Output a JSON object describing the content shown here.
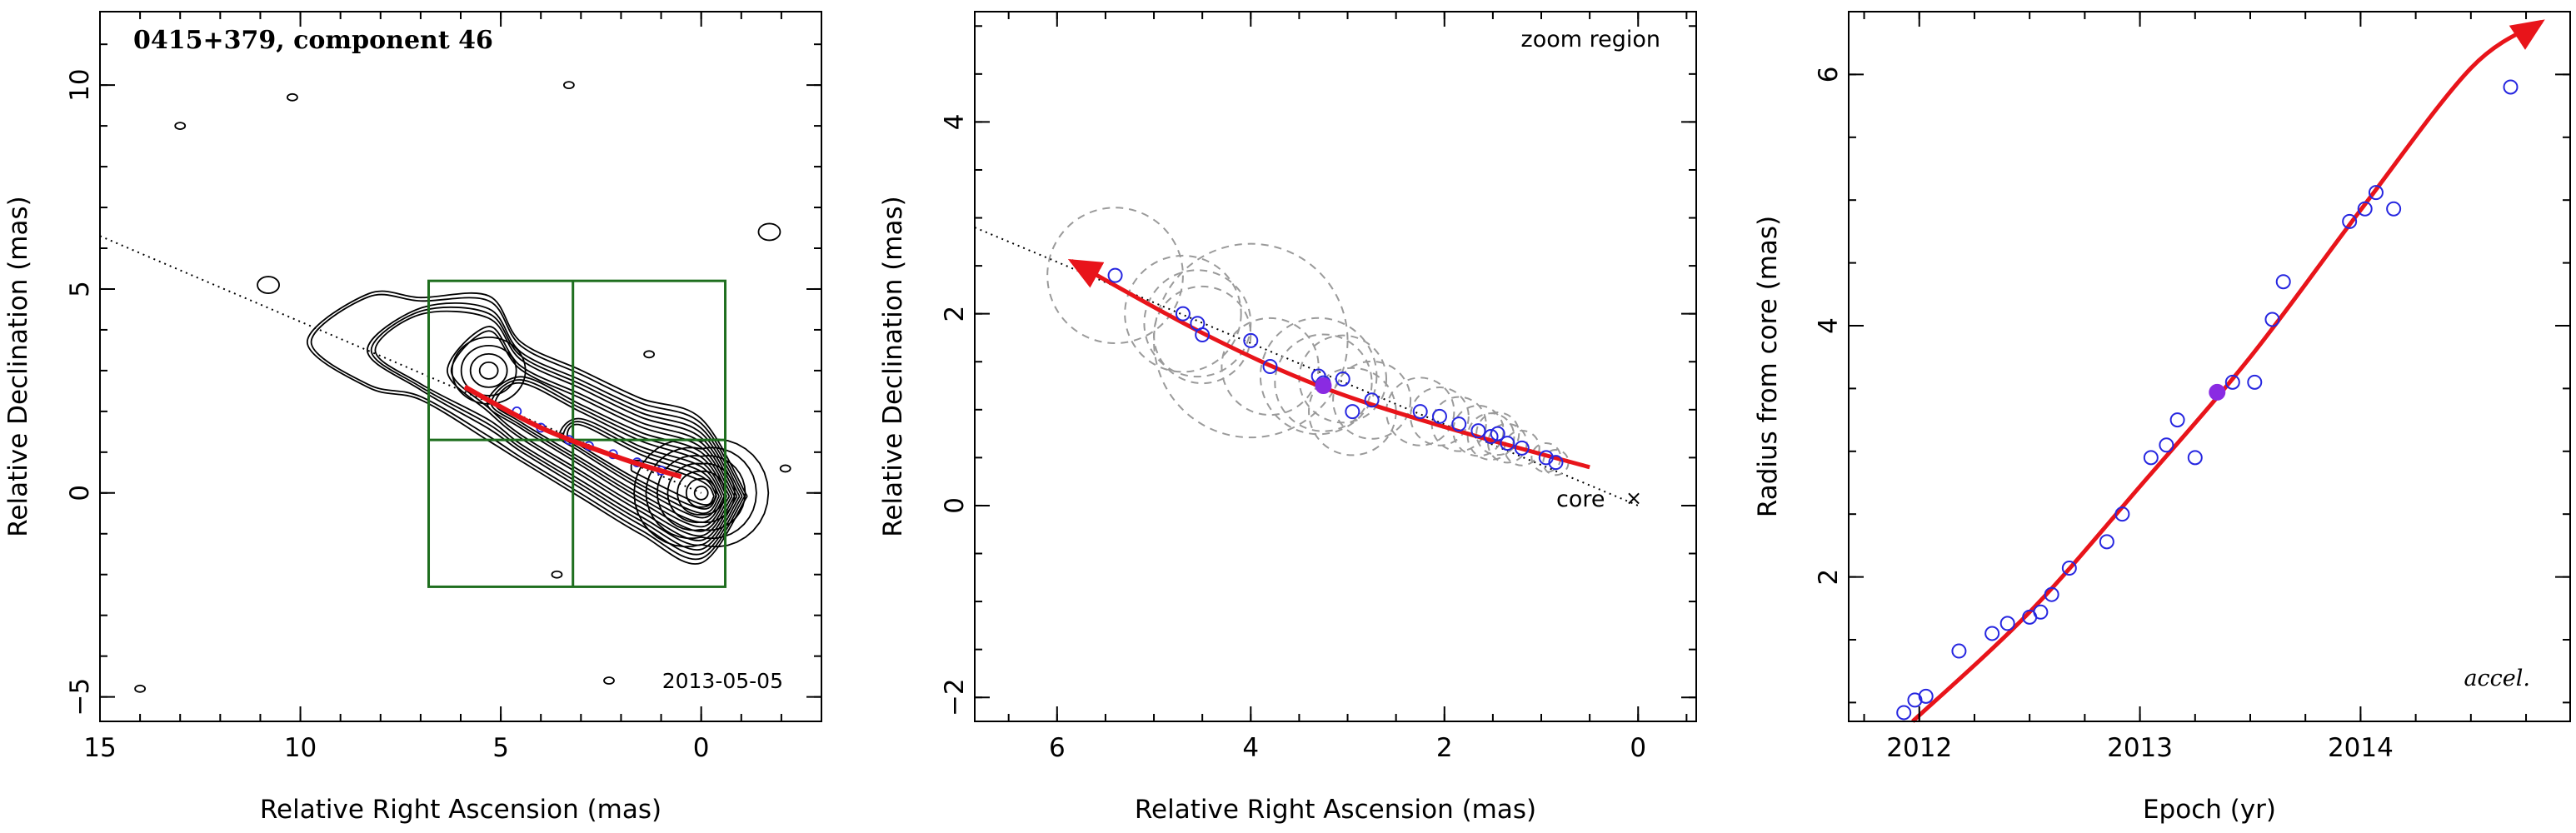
{
  "chart_data": [
    {
      "type": "scatter",
      "panel": "image",
      "title": "0415+379, component 46",
      "date_label": "2013-05-05",
      "xlabel": "Relative Right Ascension (mas)",
      "ylabel": "Relative Declination (mas)",
      "xlim": [
        15,
        -3
      ],
      "ylim": [
        -5.6,
        11.8
      ],
      "xticks": [
        15,
        10,
        5,
        0
      ],
      "yticks": [
        -5,
        0,
        5,
        10
      ],
      "colors": {
        "trajectory": "#e8141a",
        "box": "#1e6e1e",
        "points": "#2626e0",
        "contour": "#000000"
      },
      "core": [
        0,
        0
      ],
      "jet_axis": {
        "from": [
          15,
          6.3
        ],
        "to": [
          0,
          0
        ]
      },
      "zoom_box": {
        "x_range": [
          6.8,
          -0.6
        ],
        "y_range": [
          -2.3,
          5.2
        ],
        "divider_x": 3.2,
        "divider_y": 1.3
      },
      "points": [
        [
          4.6,
          2.0
        ],
        [
          4.0,
          1.6
        ],
        [
          3.3,
          1.3
        ],
        [
          2.8,
          1.15
        ],
        [
          2.2,
          0.95
        ],
        [
          1.6,
          0.75
        ],
        [
          1.0,
          0.55
        ]
      ],
      "trajectory": [
        [
          5.9,
          2.6
        ],
        [
          4.0,
          1.6
        ],
        [
          2.0,
          0.85
        ],
        [
          0.5,
          0.4
        ]
      ],
      "contours": {
        "core_center": [
          0.0,
          0.0
        ],
        "bright_knot_center": [
          5.3,
          3.0
        ],
        "jet_ridge": [
          [
            0.0,
            0.0
          ],
          [
            1.5,
            0.6
          ],
          [
            3.0,
            1.4
          ],
          [
            4.5,
            2.2
          ],
          [
            5.3,
            3.0
          ],
          [
            7.0,
            3.5
          ],
          [
            8.3,
            3.7
          ]
        ],
        "levels": 14,
        "isolated_blobs": [
          [
            10.8,
            5.1
          ],
          [
            -1.7,
            6.4
          ],
          [
            13.0,
            9.0
          ],
          [
            10.2,
            9.7
          ],
          [
            3.3,
            10.0
          ],
          [
            1.3,
            3.4
          ],
          [
            -2.1,
            0.6
          ],
          [
            14.0,
            -4.8
          ],
          [
            2.3,
            -4.6
          ],
          [
            3.6,
            -2.0
          ]
        ]
      }
    },
    {
      "type": "scatter",
      "panel": "zoom",
      "title": "zoom region",
      "core_label": "core",
      "xlabel": "Relative Right Ascension (mas)",
      "ylabel": "Relative Declination (mas)",
      "xlim": [
        6.85,
        -0.6
      ],
      "ylim": [
        -2.25,
        5.15
      ],
      "xticks": [
        6,
        4,
        2,
        0
      ],
      "yticks": [
        -2,
        0,
        2,
        4
      ],
      "colors": {
        "trajectory": "#e8141a",
        "points": "#2626e0",
        "highlight": "#8a2be2",
        "circles": "#9a9a9a"
      },
      "jet_axis": {
        "from": [
          6.85,
          2.9
        ],
        "to": [
          0,
          0
        ]
      },
      "trajectory": [
        [
          0.5,
          0.4
        ],
        [
          2.0,
          0.82
        ],
        [
          3.3,
          1.25
        ],
        [
          4.5,
          1.8
        ],
        [
          5.85,
          2.55
        ]
      ],
      "points": [
        {
          "x": 5.4,
          "y": 2.4,
          "r": 0.7
        },
        {
          "x": 4.7,
          "y": 2.0,
          "r": 0.6
        },
        {
          "x": 4.55,
          "y": 1.9,
          "r": 0.55
        },
        {
          "x": 4.5,
          "y": 1.78,
          "r": 0.5
        },
        {
          "x": 4.0,
          "y": 1.72,
          "r": 1.0
        },
        {
          "x": 3.8,
          "y": 1.45,
          "r": 0.5
        },
        {
          "x": 3.3,
          "y": 1.35,
          "r": 0.6
        },
        {
          "x": 3.25,
          "y": 1.28,
          "r": 0.5
        },
        {
          "x": 3.05,
          "y": 1.32,
          "r": 0.45
        },
        {
          "x": 2.95,
          "y": 0.98,
          "r": 0.45
        },
        {
          "x": 2.75,
          "y": 1.1,
          "r": 0.4
        },
        {
          "x": 2.25,
          "y": 0.98,
          "r": 0.35
        },
        {
          "x": 2.05,
          "y": 0.93,
          "r": 0.3
        },
        {
          "x": 1.85,
          "y": 0.85,
          "r": 0.28
        },
        {
          "x": 1.65,
          "y": 0.78,
          "r": 0.26
        },
        {
          "x": 1.52,
          "y": 0.72,
          "r": 0.24
        },
        {
          "x": 1.45,
          "y": 0.75,
          "r": 0.22
        },
        {
          "x": 1.35,
          "y": 0.65,
          "r": 0.2
        },
        {
          "x": 1.2,
          "y": 0.6,
          "r": 0.18
        },
        {
          "x": 0.95,
          "y": 0.5,
          "r": 0.15
        },
        {
          "x": 0.85,
          "y": 0.45,
          "r": 0.13
        }
      ],
      "highlight_point": {
        "x": 3.25,
        "y": 1.25
      }
    },
    {
      "type": "scatter",
      "panel": "distance",
      "xlabel": "Epoch (yr)",
      "ylabel": "Radius from core (mas)",
      "fit_label": "accel.",
      "xlim": [
        2011.68,
        2014.95
      ],
      "ylim": [
        0.85,
        6.5
      ],
      "xticks": [
        2012,
        2013,
        2014
      ],
      "yticks": [
        2,
        4,
        6
      ],
      "colors": {
        "fit": "#e8141a",
        "points": "#2626e0",
        "highlight": "#8a2be2"
      },
      "points": [
        [
          2011.93,
          0.92
        ],
        [
          2011.98,
          1.02
        ],
        [
          2012.03,
          1.05
        ],
        [
          2012.18,
          1.41
        ],
        [
          2012.33,
          1.55
        ],
        [
          2012.4,
          1.63
        ],
        [
          2012.5,
          1.68
        ],
        [
          2012.55,
          1.72
        ],
        [
          2012.6,
          1.86
        ],
        [
          2012.68,
          2.07
        ],
        [
          2012.85,
          2.28
        ],
        [
          2012.92,
          2.5
        ],
        [
          2013.05,
          2.95
        ],
        [
          2013.12,
          3.05
        ],
        [
          2013.17,
          3.25
        ],
        [
          2013.25,
          2.95
        ],
        [
          2013.42,
          3.55
        ],
        [
          2013.52,
          3.55
        ],
        [
          2013.6,
          4.05
        ],
        [
          2013.65,
          4.35
        ],
        [
          2013.95,
          4.83
        ],
        [
          2014.02,
          4.93
        ],
        [
          2014.07,
          5.06
        ],
        [
          2014.15,
          4.93
        ],
        [
          2014.68,
          5.9
        ]
      ],
      "highlight_point": [
        2013.35,
        3.47
      ],
      "fit": [
        [
          2011.97,
          0.85
        ],
        [
          2012.5,
          1.72
        ],
        [
          2013.0,
          2.72
        ],
        [
          2013.5,
          3.75
        ],
        [
          2014.0,
          4.92
        ],
        [
          2014.5,
          6.05
        ],
        [
          2014.82,
          6.42
        ]
      ]
    }
  ]
}
